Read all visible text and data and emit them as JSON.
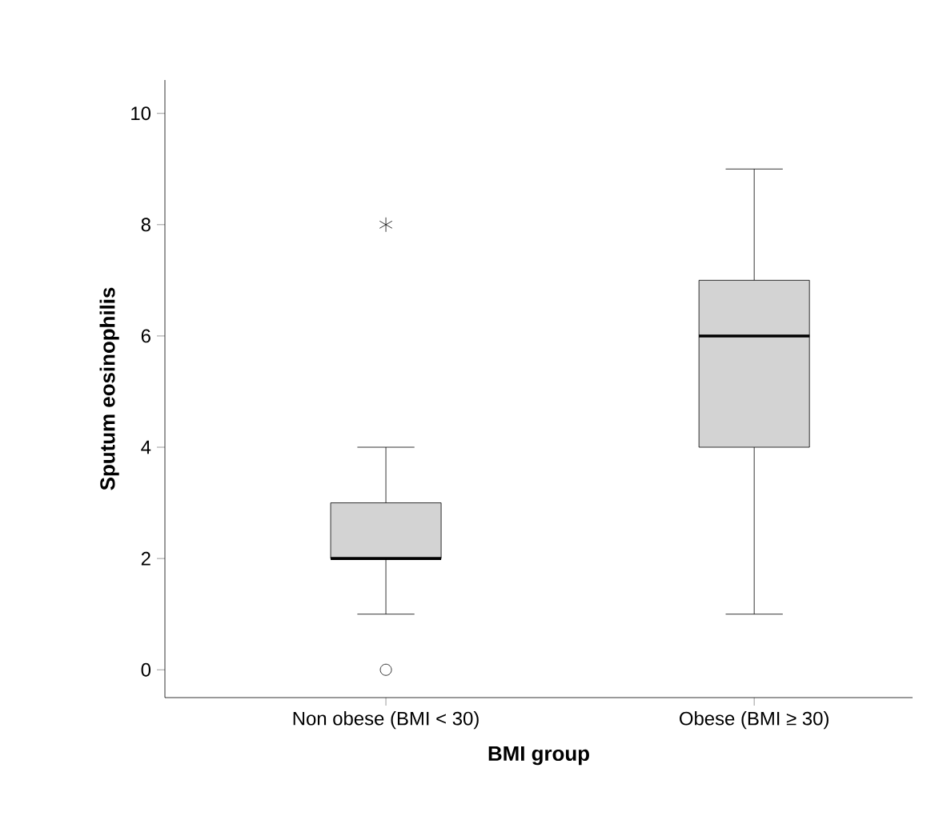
{
  "chart_data": {
    "type": "box",
    "xlabel": "BMI group",
    "ylabel": "Sputum eosinophilis",
    "categories": [
      "Non obese (BMI < 30)",
      "Obese (BMI ≥ 30)"
    ],
    "color": "#d3d3d3",
    "boxes": [
      {
        "low": 1,
        "q1": 2,
        "median": 2,
        "q3": 3,
        "high": 4,
        "outliers": [
          0,
          8
        ]
      },
      {
        "low": 1,
        "q1": 4,
        "median": 6,
        "q3": 7,
        "high": 9
      }
    ],
    "ylim": [
      -0.5,
      10.6
    ],
    "yticks": [
      0,
      2,
      4,
      6,
      8,
      10
    ]
  }
}
